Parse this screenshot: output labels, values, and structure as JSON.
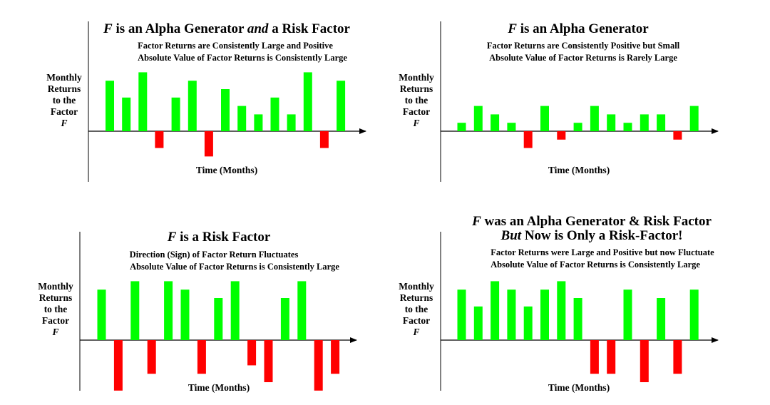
{
  "colors": {
    "positive": "#00ff00",
    "negative": "#ff0000",
    "axis": "#000000"
  },
  "chart_data": [
    {
      "type": "bar",
      "title_parts": [
        {
          "text": "F",
          "style": "italic"
        },
        {
          "text": " is an Alpha Generator ",
          "style": "normal"
        },
        {
          "text": "and",
          "style": "italic"
        },
        {
          "text": " a Risk Factor",
          "style": "normal"
        }
      ],
      "subtitle_lines": [
        "Factor Returns are Consistently Large and Positive",
        "Absolute Value of Factor Returns is Consistently Large"
      ],
      "ylabel_lines": [
        "Monthly",
        "Returns",
        "to the",
        "Factor"
      ],
      "ylabel_symbol": "F",
      "xlabel": "Time  (Months)",
      "values": [
        6,
        4,
        7,
        -2,
        4,
        6,
        -3,
        5,
        3,
        2,
        4,
        2,
        7,
        -2,
        6
      ],
      "ylim": [
        -6,
        8
      ]
    },
    {
      "type": "bar",
      "title_parts": [
        {
          "text": "F",
          "style": "italic"
        },
        {
          "text": " is an Alpha Generator",
          "style": "normal"
        }
      ],
      "subtitle_lines": [
        "Factor Returns are Consistently Positive but Small",
        "Absolute Value of Factor Returns is Rarely Large"
      ],
      "ylabel_lines": [
        "Monthly",
        "Returns",
        "to the",
        "Factor"
      ],
      "ylabel_symbol": "F",
      "xlabel": "Time  (Months)",
      "values": [
        1,
        3,
        2,
        1,
        -2,
        3,
        -1,
        1,
        3,
        2,
        1,
        2,
        2,
        -1,
        3
      ],
      "ylim": [
        -6,
        8
      ]
    },
    {
      "type": "bar",
      "title_parts": [
        {
          "text": "F",
          "style": "italic"
        },
        {
          "text": " is a Risk Factor",
          "style": "normal"
        }
      ],
      "subtitle_lines": [
        "Direction (Sign) of Factor Return  Fluctuates",
        "Absolute Value of Factor Returns is Consistently Large"
      ],
      "ylabel_lines": [
        "Monthly",
        "Returns",
        "to the",
        "Factor"
      ],
      "ylabel_symbol": "F",
      "xlabel": "Time  (Months)",
      "values": [
        6,
        -6,
        7,
        -4,
        7,
        6,
        -4,
        5,
        7,
        -3,
        -5,
        5,
        7,
        -6,
        -4
      ],
      "ylim": [
        -6,
        8
      ]
    },
    {
      "type": "bar",
      "title_parts": [
        {
          "text": "F",
          "style": "italic"
        },
        {
          "text": " was an Alpha Generator & Risk Factor",
          "style": "normal"
        }
      ],
      "title_line2_parts": [
        {
          "text": "But",
          "style": "italic"
        },
        {
          "text": " Now is Only a Risk-Factor!",
          "style": "normal"
        }
      ],
      "subtitle_lines": [
        "Factor Returns were Large and Positive but now Fluctuate",
        "Absolute Value of Factor Returns is Consistently Large"
      ],
      "ylabel_lines": [
        "Monthly",
        "Returns",
        "to the",
        "Factor"
      ],
      "ylabel_symbol": "F",
      "xlabel": "Time  (Months)",
      "values": [
        6,
        4,
        7,
        6,
        4,
        6,
        7,
        5,
        -4,
        -4,
        6,
        -5,
        5,
        -4,
        6
      ],
      "ylim": [
        -6,
        8
      ]
    }
  ]
}
